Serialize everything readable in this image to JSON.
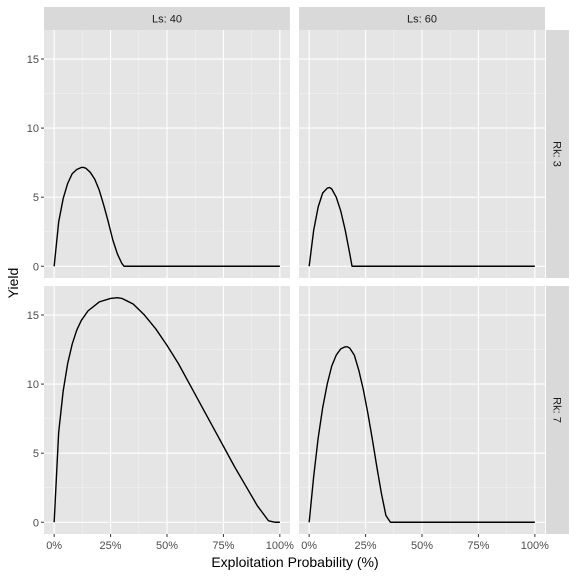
{
  "chart_data": {
    "type": "line",
    "xlabel": "Exploitation Probability (%)",
    "ylabel": "Yield",
    "xlim": [
      0,
      100
    ],
    "ylim": [
      0,
      17
    ],
    "x_ticks": [
      0,
      25,
      50,
      75,
      100
    ],
    "x_tick_labels": [
      "0%",
      "25%",
      "50%",
      "75%",
      "100%"
    ],
    "y_ticks": [
      0,
      5,
      10,
      15
    ],
    "y_tick_labels": [
      "0",
      "5",
      "10",
      "15"
    ],
    "grid": true,
    "line_color": "#000000",
    "panel_background": "#e5e5e5",
    "strip_background": "#d9d9d9",
    "col_strips": [
      "Ls: 40",
      "Ls: 60"
    ],
    "row_strips": [
      "Rk: 3",
      "Rk: 7"
    ],
    "panels": [
      {
        "col": 0,
        "row": 0,
        "series": [
          {
            "x": [
              0,
              2,
              4,
              6,
              8,
              10,
              12,
              13,
              14,
              16,
              18,
              20,
              22,
              24,
              26,
              28,
              30,
              31,
              35,
              50,
              75,
              100
            ],
            "y": [
              0,
              3.2,
              4.9,
              6.0,
              6.7,
              7.0,
              7.15,
              7.15,
              7.1,
              6.8,
              6.3,
              5.5,
              4.4,
              3.2,
              1.9,
              0.9,
              0.2,
              0,
              0,
              0,
              0,
              0
            ]
          }
        ]
      },
      {
        "col": 1,
        "row": 0,
        "series": [
          {
            "x": [
              0,
              2,
              4,
              6,
              8,
              9,
              10,
              12,
              14,
              16,
              18,
              19,
              25,
              50,
              75,
              100
            ],
            "y": [
              0,
              2.6,
              4.3,
              5.3,
              5.65,
              5.7,
              5.6,
              5.0,
              4.0,
              2.6,
              0.9,
              0,
              0,
              0,
              0,
              0
            ]
          }
        ]
      },
      {
        "col": 0,
        "row": 1,
        "series": [
          {
            "x": [
              0,
              2,
              4,
              6,
              8,
              10,
              12,
              15,
              20,
              25,
              28,
              30,
              35,
              40,
              45,
              50,
              55,
              60,
              65,
              70,
              75,
              80,
              85,
              90,
              95,
              98,
              100
            ],
            "y": [
              0,
              6.5,
              9.5,
              11.5,
              12.9,
              13.9,
              14.6,
              15.3,
              15.95,
              16.2,
              16.25,
              16.2,
              15.8,
              15.0,
              14.0,
              12.8,
              11.5,
              10.0,
              8.5,
              7.0,
              5.5,
              4.0,
              2.6,
              1.2,
              0.1,
              0,
              0
            ]
          }
        ]
      },
      {
        "col": 1,
        "row": 1,
        "series": [
          {
            "x": [
              0,
              2,
              4,
              6,
              8,
              10,
              12,
              14,
              16,
              17,
              18,
              20,
              22,
              24,
              26,
              28,
              30,
              32,
              34,
              36,
              50,
              75,
              100
            ],
            "y": [
              0,
              3.3,
              6.1,
              8.3,
              10.0,
              11.3,
              12.1,
              12.55,
              12.7,
              12.7,
              12.6,
              12.1,
              11.0,
              9.6,
              7.9,
              6.0,
              4.0,
              2.1,
              0.5,
              0,
              0,
              0,
              0
            ]
          }
        ]
      }
    ]
  }
}
